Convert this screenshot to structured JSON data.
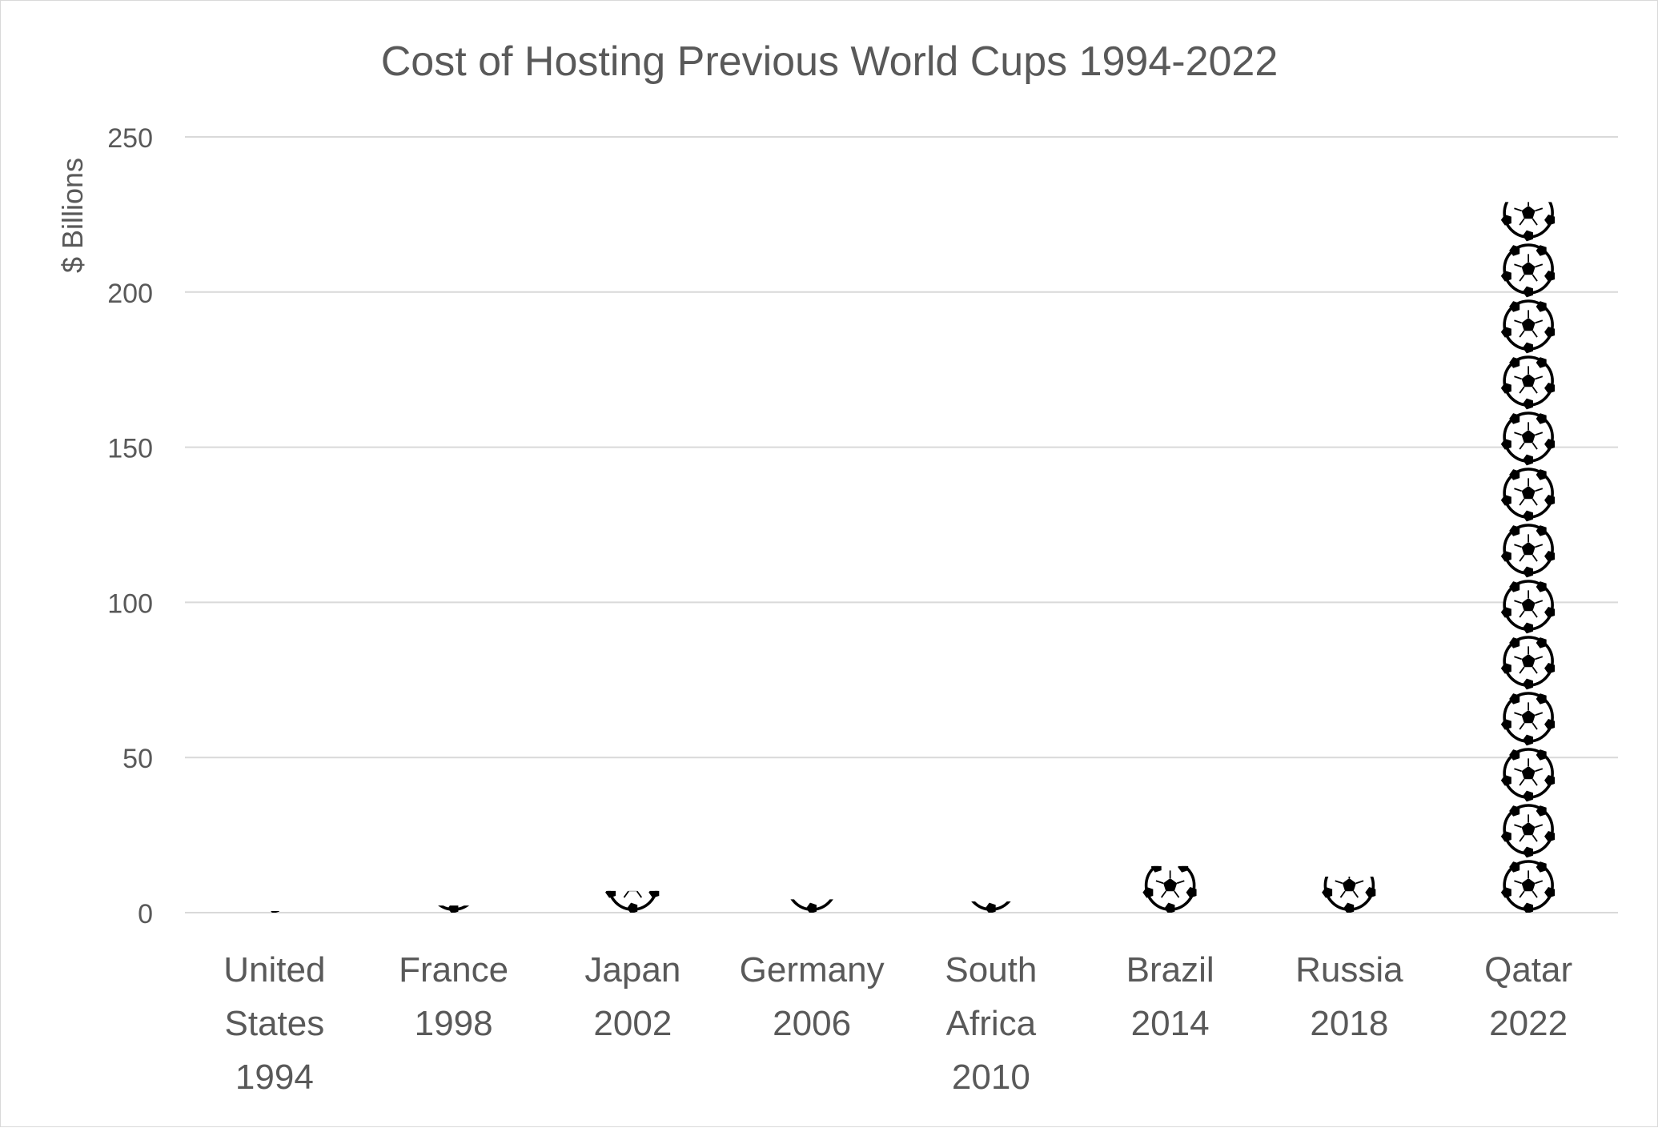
{
  "chart_data": {
    "type": "bar",
    "title": "Cost of Hosting Previous World Cups 1994-2022",
    "xlabel": "",
    "ylabel": "$ Billions",
    "ylim": [
      0,
      250
    ],
    "yticks": [
      0,
      50,
      100,
      150,
      200,
      250
    ],
    "grid": true,
    "legend": "none",
    "marker": "soccer-ball-icon",
    "categories": [
      [
        "United",
        "States",
        "1994"
      ],
      [
        "France",
        "1998"
      ],
      [
        "Japan",
        "2002"
      ],
      [
        "Germany",
        "2006"
      ],
      [
        "South",
        "Africa",
        "2010"
      ],
      [
        "Brazil",
        "2014"
      ],
      [
        "Russia",
        "2018"
      ],
      [
        "Qatar",
        "2022"
      ]
    ],
    "values": [
      0.5,
      2.3,
      7,
      4.3,
      3.6,
      15,
      11.6,
      229
    ],
    "colors": {
      "text": "#595959",
      "grid": "#d9d9d9",
      "ball": "#000000",
      "ball_fill": "#ffffff"
    }
  }
}
